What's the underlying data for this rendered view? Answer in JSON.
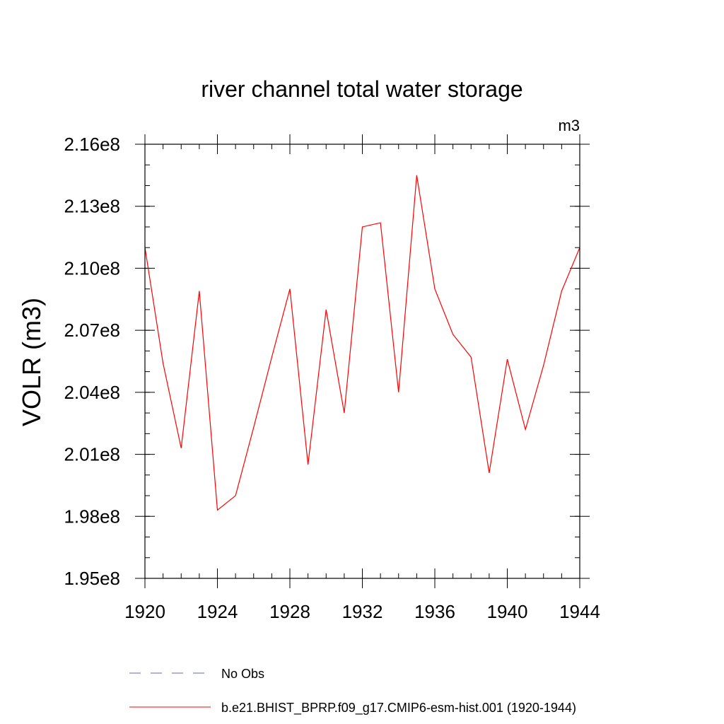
{
  "chart_data": {
    "type": "line",
    "title": "river channel total water storage",
    "units_label": "m3",
    "xlabel": "",
    "ylabel": "VOLR  (m3)",
    "xlim": [
      1920,
      1944
    ],
    "ylim": [
      195000000.0,
      216000000.0
    ],
    "x_ticks": [
      {
        "value": 1920,
        "label": "1920"
      },
      {
        "value": 1924,
        "label": "1924"
      },
      {
        "value": 1928,
        "label": "1928"
      },
      {
        "value": 1932,
        "label": "1932"
      },
      {
        "value": 1936,
        "label": "1936"
      },
      {
        "value": 1940,
        "label": "1940"
      },
      {
        "value": 1944,
        "label": "1944"
      }
    ],
    "x_minor_step": 1,
    "y_ticks": [
      {
        "value": 195000000.0,
        "label": "1.95e8"
      },
      {
        "value": 198000000.0,
        "label": "1.98e8"
      },
      {
        "value": 201000000.0,
        "label": "2.01e8"
      },
      {
        "value": 204000000.0,
        "label": "2.04e8"
      },
      {
        "value": 207000000.0,
        "label": "2.07e8"
      },
      {
        "value": 210000000.0,
        "label": "2.10e8"
      },
      {
        "value": 213000000.0,
        "label": "2.13e8"
      },
      {
        "value": 216000000.0,
        "label": "2.16e8"
      }
    ],
    "y_minor_step": 1000000.0,
    "x": [
      1920,
      1921,
      1922,
      1923,
      1924,
      1925,
      1926,
      1927,
      1928,
      1929,
      1930,
      1931,
      1932,
      1933,
      1934,
      1935,
      1936,
      1937,
      1938,
      1939,
      1940,
      1941,
      1942,
      1943,
      1944
    ],
    "series": [
      {
        "name": "b.e21.BHIST_BPRP.f09_g17.CMIP6-esm-hist.001 (1920-1944)",
        "color": "#ff0000",
        "dash": "solid",
        "values": [
          211000000.0,
          205400000.0,
          201300000.0,
          208900000.0,
          198300000.0,
          199000000.0,
          202300000.0,
          205700000.0,
          209000000.0,
          200500000.0,
          208000000.0,
          203000000.0,
          212000000.0,
          212200000.0,
          204000000.0,
          214500000.0,
          209000000.0,
          206800000.0,
          205700000.0,
          200100000.0,
          205600000.0,
          202200000.0,
          205300000.0,
          208900000.0,
          211000000.0
        ]
      }
    ],
    "legend": {
      "position": "bottom-left",
      "entries": [
        {
          "label": "No Obs",
          "color": "#6666bb",
          "dash": "dashed"
        },
        {
          "label": "b.e21.BHIST_BPRP.f09_g17.CMIP6-esm-hist.001 (1920-1944)",
          "color": "#ff0000",
          "dash": "solid"
        }
      ]
    },
    "grid": false
  }
}
